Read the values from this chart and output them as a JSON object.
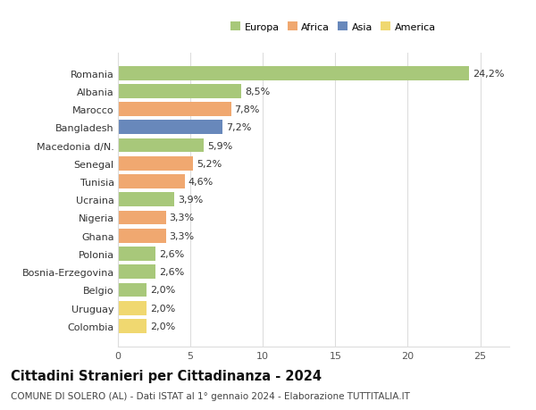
{
  "categories": [
    "Romania",
    "Albania",
    "Marocco",
    "Bangladesh",
    "Macedonia d/N.",
    "Senegal",
    "Tunisia",
    "Ucraina",
    "Nigeria",
    "Ghana",
    "Polonia",
    "Bosnia-Erzegovina",
    "Belgio",
    "Uruguay",
    "Colombia"
  ],
  "values": [
    24.2,
    8.5,
    7.8,
    7.2,
    5.9,
    5.2,
    4.6,
    3.9,
    3.3,
    3.3,
    2.6,
    2.6,
    2.0,
    2.0,
    2.0
  ],
  "labels": [
    "24,2%",
    "8,5%",
    "7,8%",
    "7,2%",
    "5,9%",
    "5,2%",
    "4,6%",
    "3,9%",
    "3,3%",
    "3,3%",
    "2,6%",
    "2,6%",
    "2,0%",
    "2,0%",
    "2,0%"
  ],
  "colors": [
    "#a8c87a",
    "#a8c87a",
    "#f0a870",
    "#6888bb",
    "#a8c87a",
    "#f0a870",
    "#f0a870",
    "#a8c87a",
    "#f0a870",
    "#f0a870",
    "#a8c87a",
    "#a8c87a",
    "#a8c87a",
    "#f0d870",
    "#f0d870"
  ],
  "legend": [
    {
      "label": "Europa",
      "color": "#a8c87a"
    },
    {
      "label": "Africa",
      "color": "#f0a870"
    },
    {
      "label": "Asia",
      "color": "#6888bb"
    },
    {
      "label": "America",
      "color": "#f0d870"
    }
  ],
  "xlim": [
    0,
    27
  ],
  "xticks": [
    0,
    5,
    10,
    15,
    20,
    25
  ],
  "title": "Cittadini Stranieri per Cittadinanza - 2024",
  "subtitle": "COMUNE DI SOLERO (AL) - Dati ISTAT al 1° gennaio 2024 - Elaborazione TUTTITALIA.IT",
  "bg_color": "#ffffff",
  "grid_color": "#dddddd",
  "bar_height": 0.78,
  "label_fontsize": 8,
  "ytick_fontsize": 8,
  "xtick_fontsize": 8,
  "title_fontsize": 10.5,
  "subtitle_fontsize": 7.5
}
